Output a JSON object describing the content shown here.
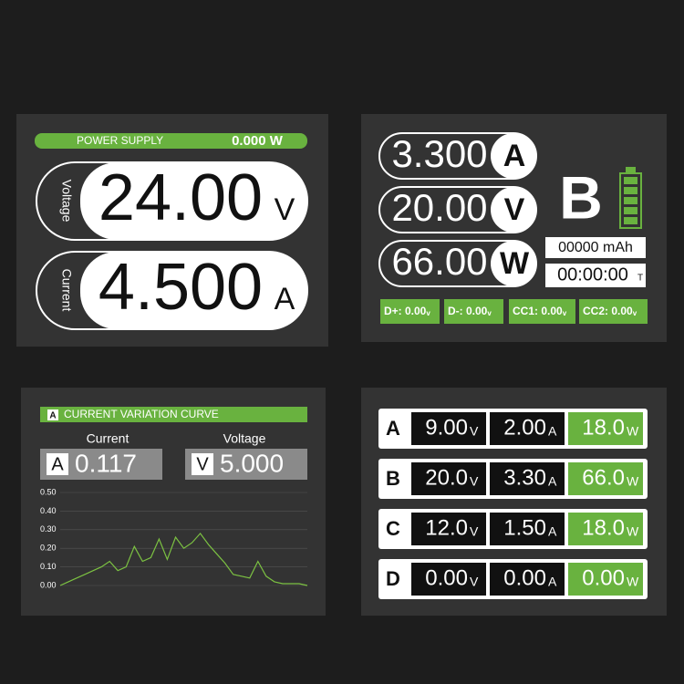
{
  "power_supply": {
    "title": "POWER SUPPLY",
    "power": "0.000 W",
    "voltage_label": "Voltage",
    "voltage": "24.00",
    "voltage_unit": "V",
    "current_label": "Current",
    "current": "4.500",
    "current_unit": "A"
  },
  "port_b": {
    "readings": [
      {
        "value": "3.300",
        "unit": "A"
      },
      {
        "value": "20.00",
        "unit": "V"
      },
      {
        "value": "66.00",
        "unit": "W"
      }
    ],
    "port": "B",
    "capacity": "00000 mAh",
    "time": "00:00:00",
    "time_unit": "T",
    "data_lines": [
      {
        "label": "D+: 0.00",
        "unit": "v"
      },
      {
        "label": "D-: 0.00",
        "unit": "v"
      },
      {
        "label": "CC1: 0.00",
        "unit": "v"
      },
      {
        "label": "CC2: 0.00",
        "unit": "v"
      }
    ]
  },
  "curve": {
    "icon": "A",
    "title": "CURRENT VARIATION CURVE",
    "current_label": "Current",
    "current_icon": "A",
    "current": "0.117",
    "voltage_label": "Voltage",
    "voltage_icon": "V",
    "voltage": "5.000"
  },
  "chart_data": {
    "type": "line",
    "categories": [
      null,
      null,
      null,
      null,
      null,
      null,
      null,
      null,
      null,
      null,
      null,
      null,
      null,
      null,
      null,
      null,
      null,
      null,
      null,
      null,
      null,
      null,
      null,
      null,
      null,
      null,
      null,
      null,
      null,
      null,
      null
    ],
    "values": [
      0.0,
      0.02,
      0.04,
      0.06,
      0.08,
      0.1,
      0.13,
      0.08,
      0.1,
      0.21,
      0.13,
      0.15,
      0.25,
      0.14,
      0.26,
      0.2,
      0.23,
      0.28,
      0.22,
      0.17,
      0.12,
      0.06,
      0.05,
      0.04,
      0.13,
      0.05,
      0.02,
      0.01,
      0.01,
      0.01,
      0.0
    ],
    "color": "#7cc242",
    "ylim": [
      0,
      0.5
    ],
    "yticks": [
      {
        "value": 0,
        "label": "0.00"
      },
      {
        "value": 0.1,
        "label": "0.10"
      },
      {
        "value": 0.2,
        "label": "0.20"
      },
      {
        "value": 0.3,
        "label": "0.30"
      },
      {
        "value": 0.4,
        "label": "0.40"
      },
      {
        "value": 0.5,
        "label": "0.50"
      }
    ],
    "grid": true
  },
  "ports": {
    "rows": [
      {
        "port": "A",
        "voltage": "9.00",
        "voltage_unit": "V",
        "current": "2.00",
        "current_unit": "A",
        "power": "18.0",
        "power_unit": "W"
      },
      {
        "port": "B",
        "voltage": "20.0",
        "voltage_unit": "V",
        "current": "3.30",
        "current_unit": "A",
        "power": "66.0",
        "power_unit": "W"
      },
      {
        "port": "C",
        "voltage": "12.0",
        "voltage_unit": "V",
        "current": "1.50",
        "current_unit": "A",
        "power": "18.0",
        "power_unit": "W"
      },
      {
        "port": "D",
        "voltage": "0.00",
        "voltage_unit": "V",
        "current": "0.00",
        "current_unit": "A",
        "power": "0.00",
        "power_unit": "W"
      }
    ]
  }
}
